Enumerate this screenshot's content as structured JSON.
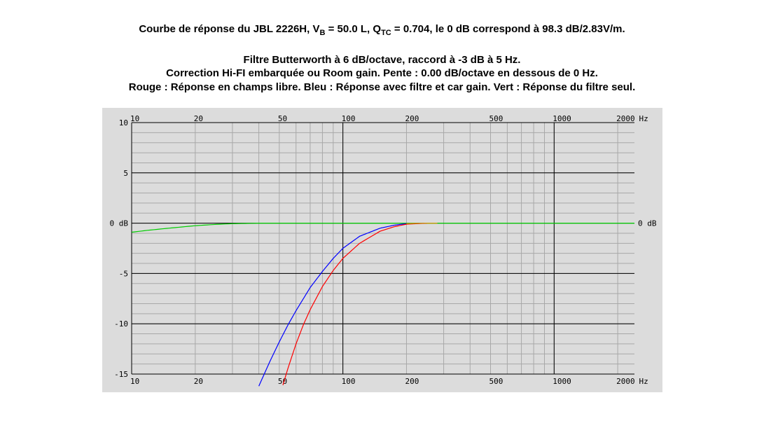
{
  "header": {
    "line1": {
      "a": "Courbe de réponse du JBL 2226H, V",
      "sub1": "B",
      "b": " = 50.0 L, Q",
      "sub2": "TC",
      "c": " = 0.704, le 0 dB correspond à 98.3 dB/2.83V/m."
    },
    "line2": "Filtre Butterworth à 6 dB/octave, raccord à -3 dB à 5 Hz.",
    "line3": "Correction Hi-FI embarquée ou Room gain. Pente : 0.00 dB/octave en dessous de 0 Hz.",
    "line4": "Rouge : Réponse en champs libre. Bleu : Réponse avec filtre et car gain. Vert : Réponse du filtre seul."
  },
  "chart_data": {
    "type": "line",
    "x_scale": "log",
    "xlim": [
      10,
      2400
    ],
    "ylim": [
      -15,
      10
    ],
    "grid": true,
    "x_tick_labels": [
      {
        "value": 10,
        "label": "10"
      },
      {
        "value": 20,
        "label": "20"
      },
      {
        "value": 50,
        "label": "50"
      },
      {
        "value": 100,
        "label": "100"
      },
      {
        "value": 200,
        "label": "200"
      },
      {
        "value": 500,
        "label": "500"
      },
      {
        "value": 1000,
        "label": "1000"
      },
      {
        "value": 2000,
        "label": "2000"
      }
    ],
    "x_unit": "Hz",
    "y_tick_labels": [
      {
        "value": 10,
        "label": "10"
      },
      {
        "value": 5,
        "label": "5"
      },
      {
        "value": 0,
        "label": "0 dB"
      },
      {
        "value": -5,
        "label": "-5"
      },
      {
        "value": -10,
        "label": "-10"
      },
      {
        "value": -15,
        "label": "-15"
      }
    ],
    "right_label": {
      "value": 0,
      "label": "0 dB"
    },
    "colors": {
      "background": "#dcdcdc",
      "grid_major": "#000000",
      "grid_minor": "#a8a8a8"
    },
    "series": [
      {
        "color": "#00cc00",
        "x": [
          10,
          12,
          15,
          20,
          25,
          30,
          40,
          60,
          100,
          200,
          500,
          1000,
          2000,
          2400
        ],
        "y": [
          -0.9,
          -0.7,
          -0.5,
          -0.25,
          -0.12,
          -0.05,
          0,
          0,
          0,
          0,
          0,
          0,
          0,
          0
        ]
      },
      {
        "color": "#0000ff",
        "x": [
          40,
          45,
          50,
          55,
          60,
          70,
          80,
          90,
          100,
          120,
          150,
          175,
          200,
          250
        ],
        "y": [
          -16.2,
          -13.8,
          -11.8,
          -10.1,
          -8.7,
          -6.4,
          -4.8,
          -3.5,
          -2.5,
          -1.3,
          -0.5,
          -0.2,
          -0.05,
          0
        ]
      },
      {
        "color": "#ff0000",
        "x": [
          52,
          55,
          60,
          65,
          70,
          80,
          90,
          100,
          120,
          150,
          175,
          200,
          250
        ],
        "y": [
          -16.1,
          -14.4,
          -12.0,
          -10.1,
          -8.6,
          -6.3,
          -4.7,
          -3.5,
          -2.0,
          -0.8,
          -0.35,
          -0.1,
          0
        ]
      },
      {
        "color": "#cc9900",
        "x": [
          200,
          220,
          250,
          280
        ],
        "y": [
          -0.05,
          -0.02,
          0,
          0
        ]
      }
    ]
  }
}
